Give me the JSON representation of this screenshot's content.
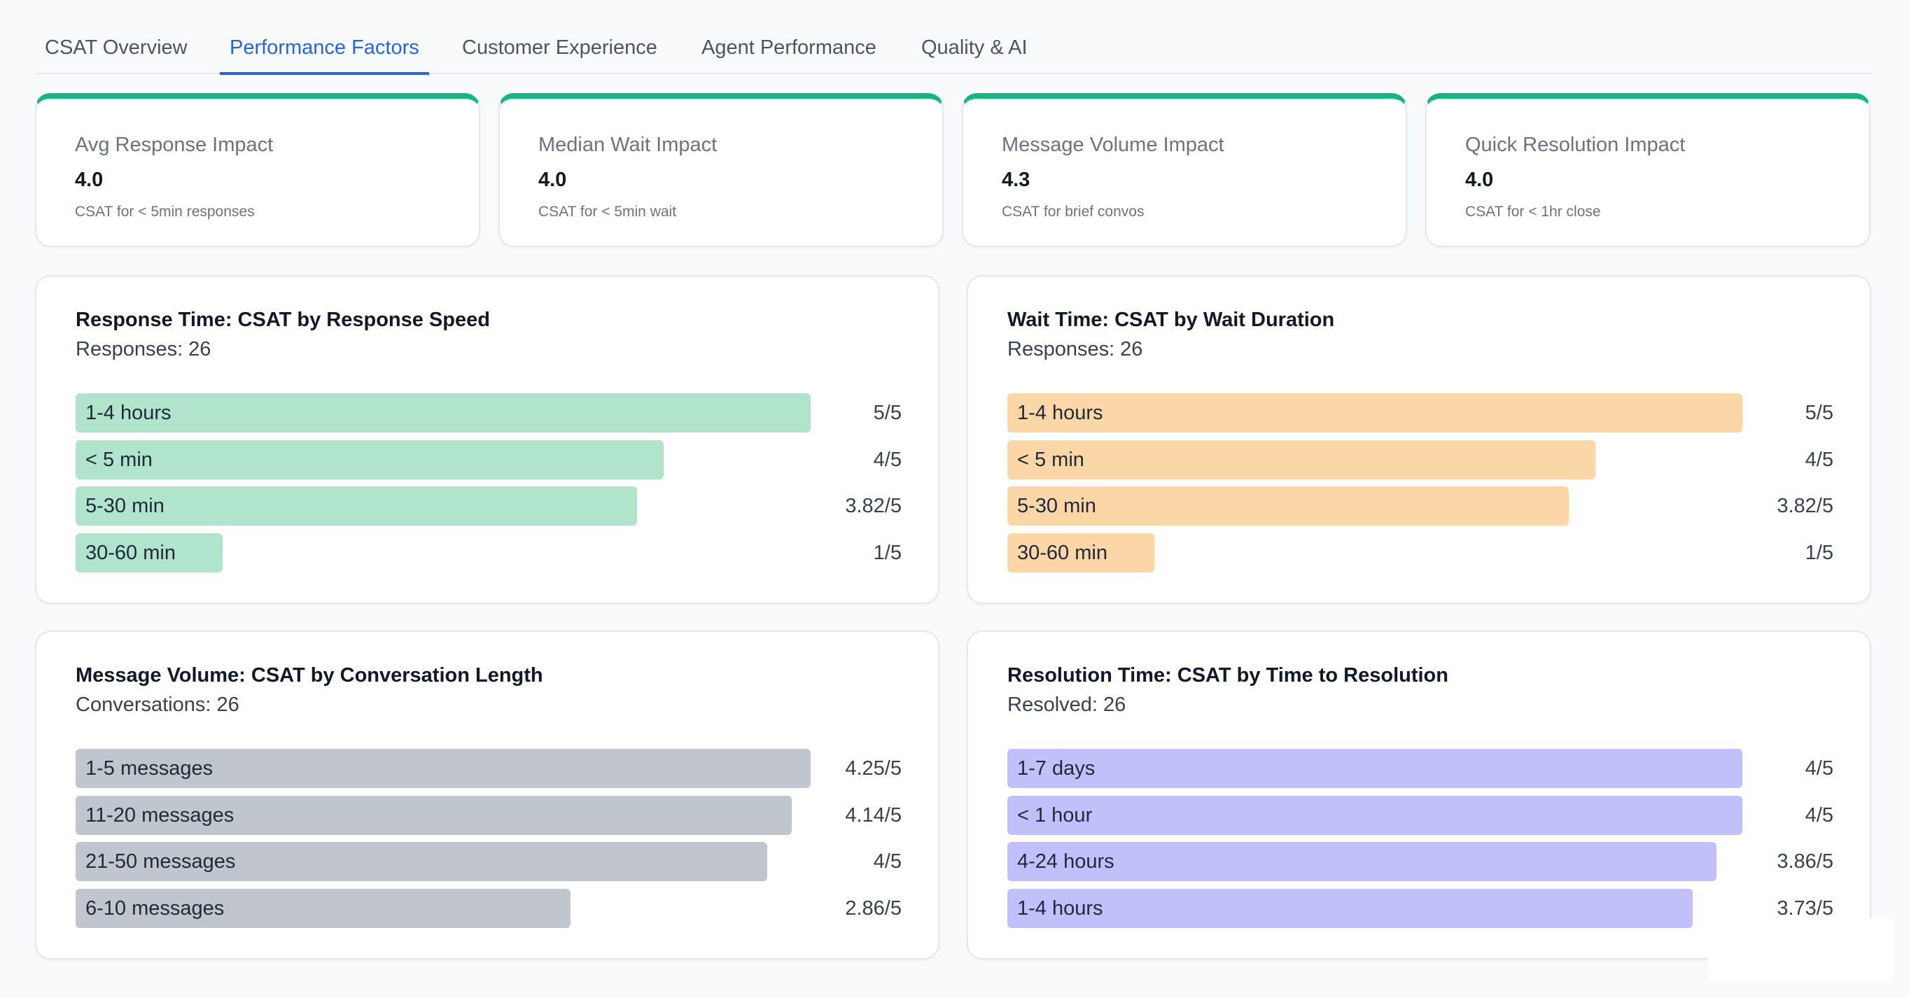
{
  "tabs": [
    {
      "label": "CSAT Overview"
    },
    {
      "label": "Performance Factors"
    },
    {
      "label": "Customer Experience"
    },
    {
      "label": "Agent Performance"
    },
    {
      "label": "Quality & AI"
    }
  ],
  "active_tab": "Performance Factors",
  "kpis": [
    {
      "label": "Avg Response Impact",
      "value": "4.0",
      "sub": "CSAT for < 5min responses"
    },
    {
      "label": "Median Wait Impact",
      "value": "4.0",
      "sub": "CSAT for < 5min wait"
    },
    {
      "label": "Message Volume Impact",
      "value": "4.3",
      "sub": "CSAT for brief convos"
    },
    {
      "label": "Quick Resolution Impact",
      "value": "4.0",
      "sub": "CSAT for < 1hr close"
    }
  ],
  "colors": {
    "accent": "#2563eb",
    "kpi_border": "#10b981",
    "response_bar": "#b0e4cc",
    "wait_bar": "#fbd7a7",
    "volume_bar": "#c1c6ce",
    "resolution_bar": "#c2c0fa"
  },
  "chart_data": [
    {
      "type": "bar",
      "title": "Response Time: CSAT by Response Speed",
      "count_label": "Responses:",
      "count": "26",
      "max": 5,
      "categories": [
        "1-4 hours",
        "< 5 min",
        "5-30 min",
        "30-60 min"
      ],
      "values": [
        5,
        4,
        3.82,
        1
      ],
      "value_labels": [
        "5/5",
        "4/5",
        "3.82/5",
        "1/5"
      ]
    },
    {
      "type": "bar",
      "title": "Wait Time: CSAT by Wait Duration",
      "count_label": "Responses:",
      "count": "26",
      "max": 5,
      "categories": [
        "1-4 hours",
        "< 5 min",
        "5-30 min",
        "30-60 min"
      ],
      "values": [
        5,
        4,
        3.82,
        1
      ],
      "value_labels": [
        "5/5",
        "4/5",
        "3.82/5",
        "1/5"
      ]
    },
    {
      "type": "bar",
      "title": "Message Volume: CSAT by Conversation Length",
      "count_label": "Conversations:",
      "count": "26",
      "max": 4.25,
      "categories": [
        "1-5 messages",
        "11-20 messages",
        "21-50 messages",
        "6-10 messages"
      ],
      "values": [
        4.25,
        4.14,
        4,
        2.86
      ],
      "value_labels": [
        "4.25/5",
        "4.14/5",
        "4/5",
        "2.86/5"
      ]
    },
    {
      "type": "bar",
      "title": "Resolution Time: CSAT by Time to Resolution",
      "count_label": "Resolved:",
      "count": "26",
      "max": 4,
      "categories": [
        "1-7 days",
        "< 1 hour",
        "4-24 hours",
        "1-4 hours"
      ],
      "values": [
        4,
        4,
        3.86,
        3.73
      ],
      "value_labels": [
        "4/5",
        "4/5",
        "3.86/5",
        "3.73/5"
      ]
    }
  ]
}
